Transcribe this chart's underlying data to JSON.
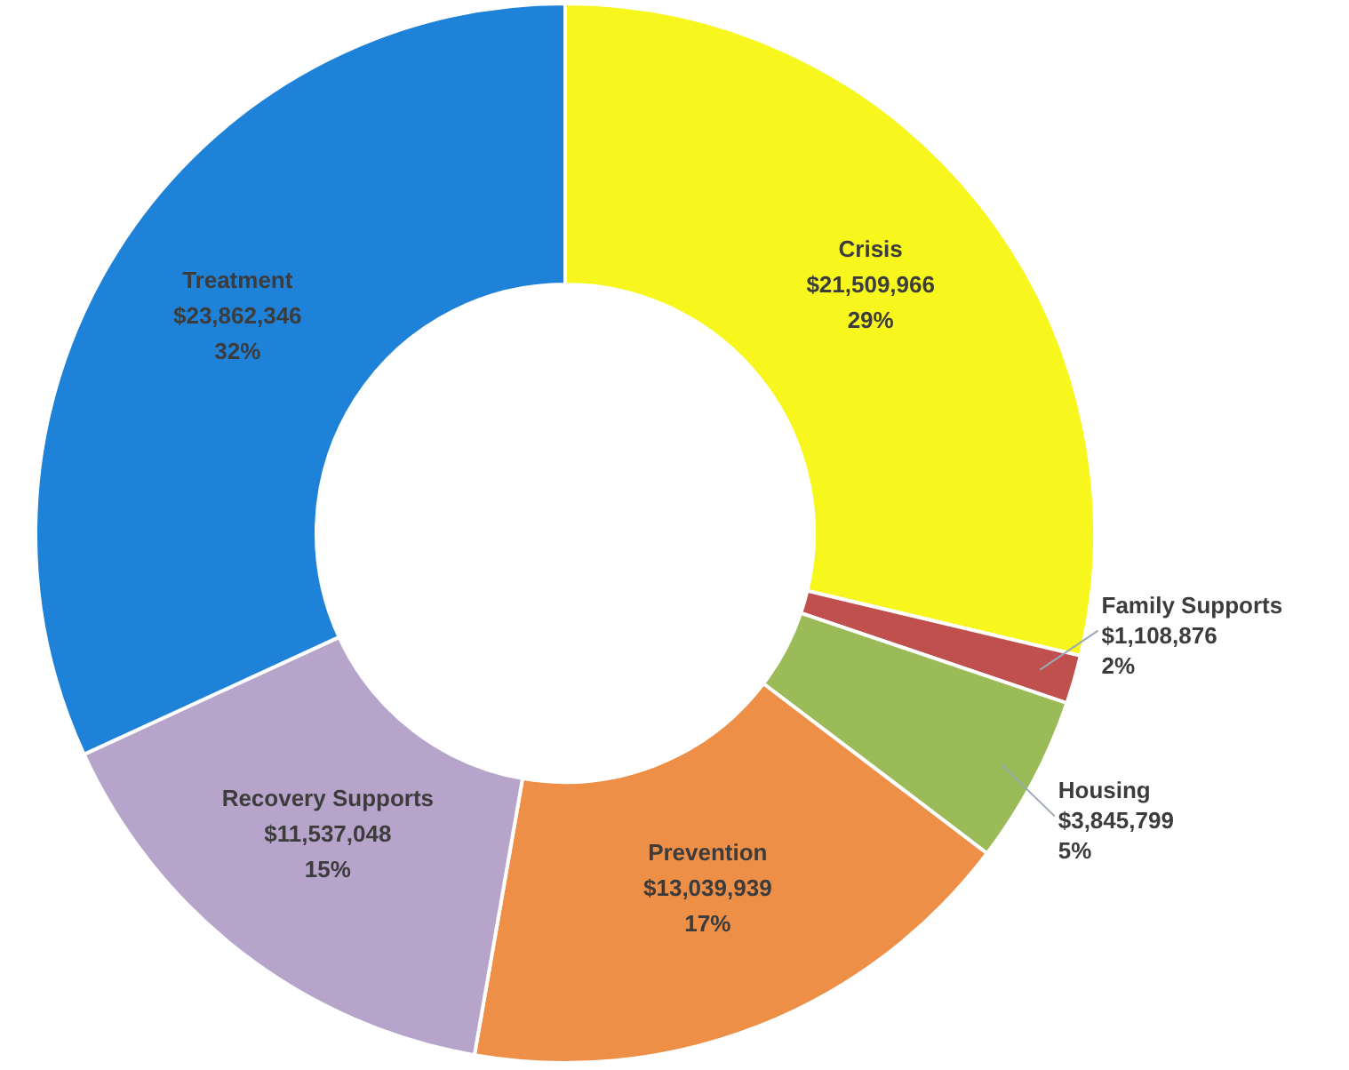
{
  "chart_data": {
    "type": "donut",
    "categories": [
      "Crisis",
      "Family Supports",
      "Housing",
      "Prevention",
      "Recovery Supports",
      "Treatment"
    ],
    "values": [
      21509966,
      1108876,
      3845799,
      13039939,
      11537048,
      23862346
    ],
    "colors": [
      "#f7f71e",
      "#c0504d",
      "#9bbb59",
      "#ee8f48",
      "#b7a4cb",
      "#1e82d8"
    ],
    "value_labels": [
      "$21,509,966\n29%",
      "$1,108,876\n2%",
      "$3,845,799\n5%",
      "$13,039,939\n17%",
      "$11,537,048\n15%",
      "$23,862,346\n32%"
    ],
    "legend": false
  }
}
